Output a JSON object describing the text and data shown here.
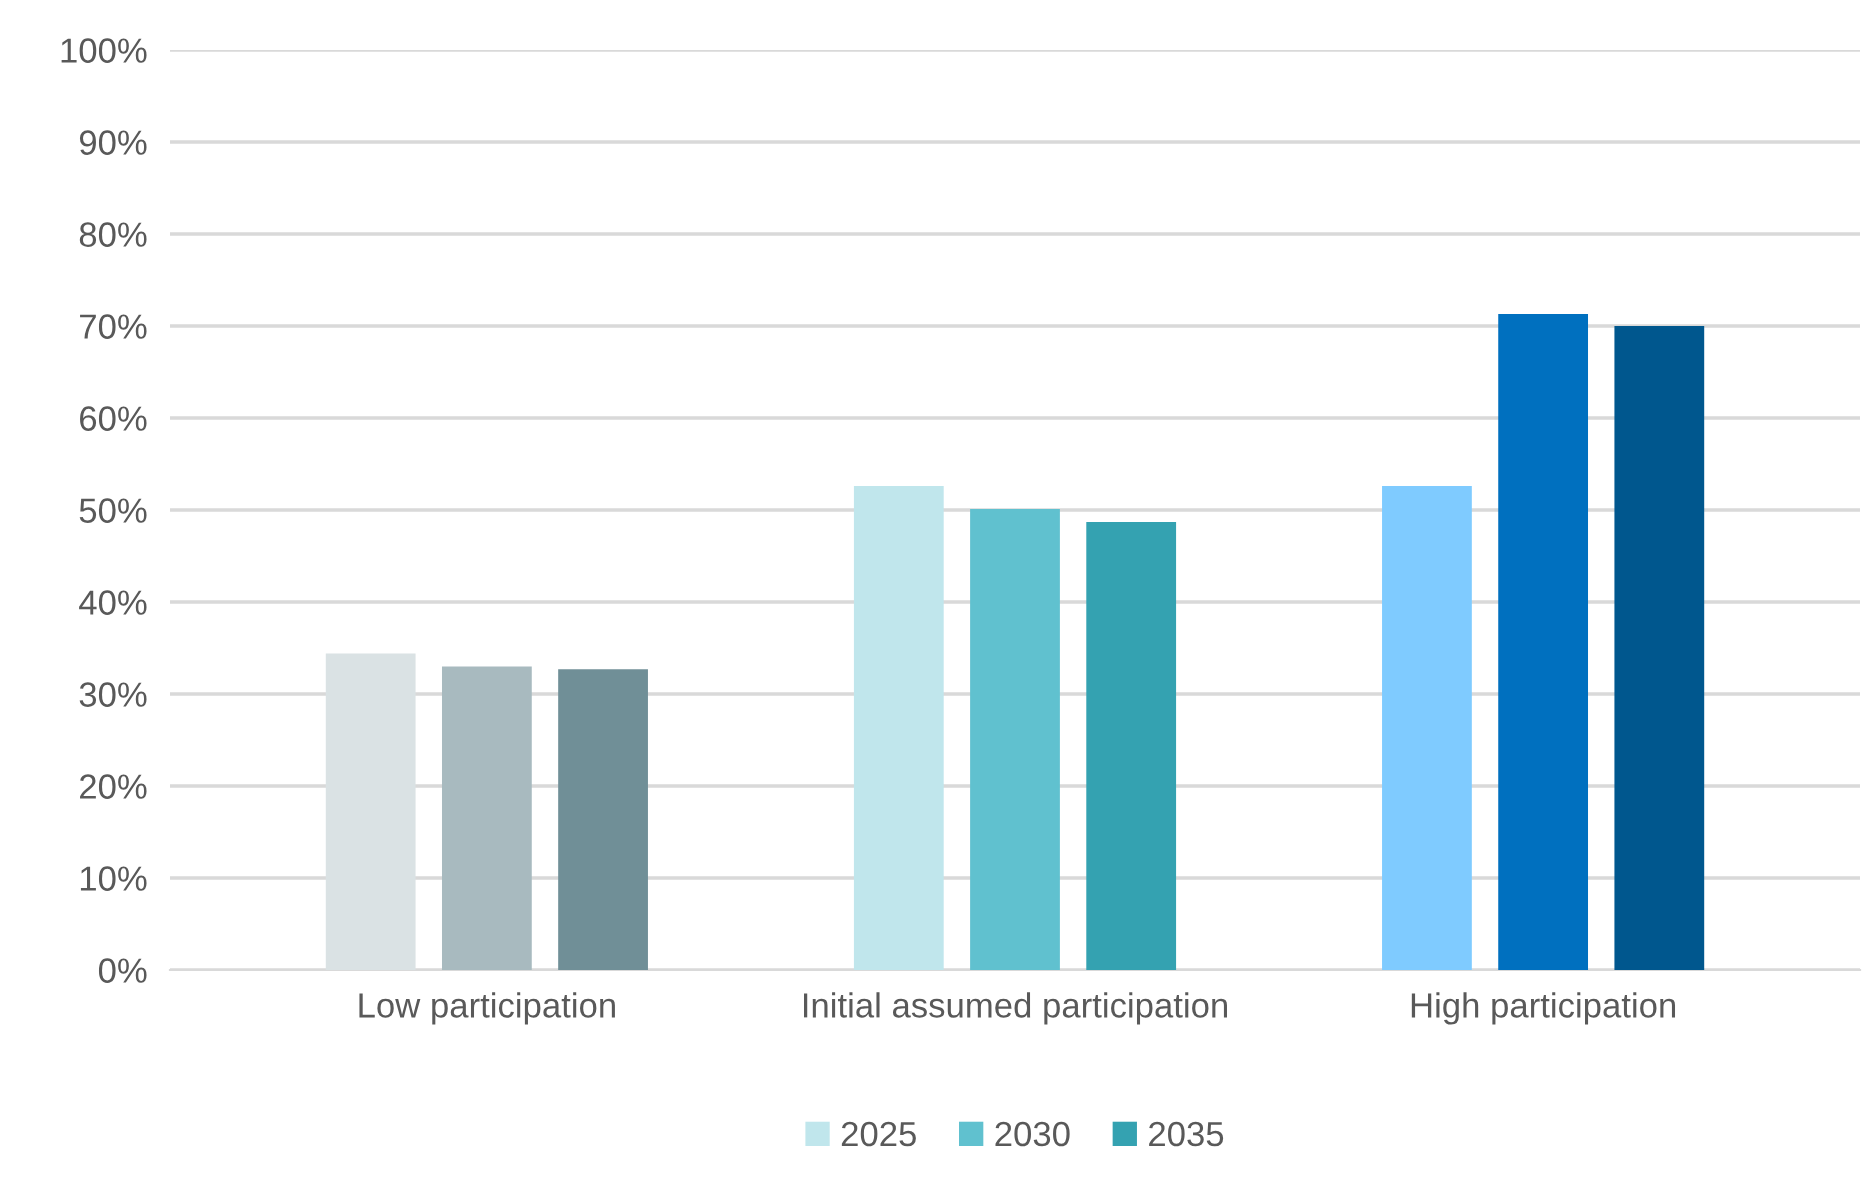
{
  "chart_data": {
    "type": "bar",
    "categories": [
      "Low participation",
      "Initial assumed participation",
      "High participation"
    ],
    "series": [
      {
        "name": "2025",
        "color": "#c0e6ec",
        "colors": [
          "#dae2e4",
          "#c0e6ec",
          "#7fcbff"
        ],
        "values": [
          34.4,
          52.6,
          52.6
        ]
      },
      {
        "name": "2030",
        "color": "#60c1cf",
        "colors": [
          "#a8babf",
          "#60c1cf",
          "#0070bf"
        ],
        "values": [
          33.0,
          50.1,
          71.3
        ]
      },
      {
        "name": "2035",
        "color": "#34a2b1",
        "colors": [
          "#708f97",
          "#34a2b1",
          "#00578e"
        ],
        "values": [
          32.7,
          48.7,
          70.0
        ]
      }
    ],
    "ylim": [
      0,
      100
    ],
    "yticks": [
      {
        "value": 0,
        "label": "0%"
      },
      {
        "value": 10,
        "label": "10%"
      },
      {
        "value": 20,
        "label": "20%"
      },
      {
        "value": 30,
        "label": "30%"
      },
      {
        "value": 40,
        "label": "40%"
      },
      {
        "value": 50,
        "label": "50%"
      },
      {
        "value": 60,
        "label": "60%"
      },
      {
        "value": 70,
        "label": "70%"
      },
      {
        "value": 80,
        "label": "80%"
      },
      {
        "value": 90,
        "label": "90%"
      },
      {
        "value": 100,
        "label": "100%"
      }
    ],
    "grid": "y",
    "legend": "bottom"
  }
}
